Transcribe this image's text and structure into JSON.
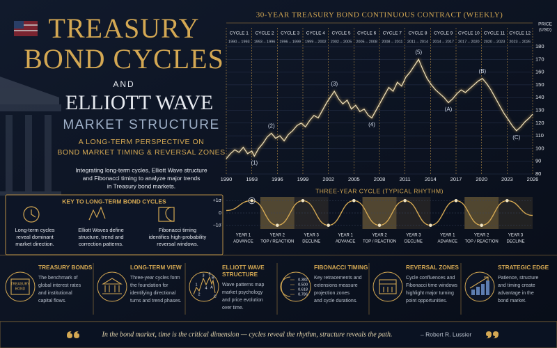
{
  "header": {
    "title_lines": [
      "TREASURY",
      "BOND CYCLES"
    ],
    "connector": "AND",
    "subtitle_lines": [
      "ELLIOTT WAVE",
      "MARKET STRUCTURE"
    ],
    "tagline_lines": [
      "A LONG-TERM PERSPECTIVE ON",
      "BOND MARKET TIMING & REVERSAL ZONES"
    ],
    "description_lines": [
      "Integrating long-term cycles, Elliott Wave structure",
      "and Fibonacci timing to analyze major trends",
      "in Treasury bond markets."
    ]
  },
  "key": {
    "title": "KEY TO LONG-TERM BOND CYCLES",
    "items": [
      [
        "Long-term cycles",
        "reveal dominant",
        "market direction."
      ],
      [
        "Elliott Waves define",
        "structure, trend and",
        "correction patterns."
      ],
      [
        "Fibonacci timing",
        "identifies high-probability",
        "reversal windows."
      ]
    ]
  },
  "chart_data": [
    {
      "type": "line",
      "title": "30-YEAR TREASURY BOND CONTINUOUS CONTRACT (WEEKLY)",
      "ylabel_lines": [
        "PRICE",
        "(USD)"
      ],
      "color": "#eadcb6",
      "x": [
        1990,
        1990.5,
        1991,
        1991.5,
        1992,
        1992.5,
        1993,
        1993.3,
        1993.8,
        1994.3,
        1994.8,
        1995.3,
        1995.8,
        1996.3,
        1996.8,
        1997.3,
        1997.8,
        1998.3,
        1998.8,
        1999.3,
        1999.8,
        2000.3,
        2000.8,
        2001.3,
        2001.8,
        2002.3,
        2002.7,
        2003.2,
        2003.7,
        2004.2,
        2004.7,
        2005.2,
        2005.7,
        2006.2,
        2006.7,
        2007.1,
        2007.6,
        2008.1,
        2008.6,
        2009.1,
        2009.6,
        2010.1,
        2010.6,
        2011.1,
        2011.6,
        2012.1,
        2012.6,
        2013.1,
        2013.6,
        2014.1,
        2014.6,
        2015.1,
        2015.6,
        2016.1,
        2016.6,
        2017.1,
        2017.6,
        2018.1,
        2018.6,
        2019.1,
        2019.6,
        2020.1,
        2020.6,
        2021.1,
        2021.6,
        2022.1,
        2022.6,
        2023.1,
        2023.6,
        2024.1,
        2024.6,
        2025.1,
        2025.6,
        2026
      ],
      "values": [
        92,
        96,
        99,
        97,
        101,
        96,
        98,
        94,
        100,
        104,
        109,
        112,
        108,
        110,
        106,
        111,
        114,
        118,
        120,
        117,
        122,
        126,
        124,
        130,
        136,
        141,
        145,
        139,
        135,
        138,
        131,
        134,
        129,
        131,
        126,
        124,
        130,
        136,
        142,
        148,
        145,
        152,
        149,
        156,
        160,
        165,
        170,
        162,
        155,
        150,
        146,
        143,
        140,
        136,
        139,
        143,
        146,
        144,
        147,
        150,
        153,
        155,
        151,
        146,
        140,
        134,
        128,
        123,
        118,
        114,
        117,
        121,
        124,
        127
      ],
      "xlim": [
        1990,
        2026
      ],
      "xticks": [
        1990,
        1993,
        1996,
        1999,
        2002,
        2005,
        2008,
        2011,
        2014,
        2017,
        2020,
        2023,
        2026
      ],
      "ylim": [
        80,
        180
      ],
      "yticks": [
        80,
        90,
        100,
        110,
        120,
        130,
        140,
        150,
        160,
        170,
        180
      ],
      "grid": true,
      "cycles": [
        {
          "name": "CYCLE 1",
          "years": "1990 – 1993"
        },
        {
          "name": "CYCLE 2",
          "years": "1993 – 1996"
        },
        {
          "name": "CYCLE 3",
          "years": "1996 – 1999"
        },
        {
          "name": "CYCLE 4",
          "years": "1999 – 2002"
        },
        {
          "name": "CYCLE 5",
          "years": "2002 – 2005"
        },
        {
          "name": "CYCLE 6",
          "years": "2005 – 2008"
        },
        {
          "name": "CYCLE 7",
          "years": "2008 – 2011"
        },
        {
          "name": "CYCLE 8",
          "years": "2011 – 2014"
        },
        {
          "name": "CYCLE 9",
          "years": "2014 – 2017"
        },
        {
          "name": "CYCLE 10",
          "years": "2017 – 2020"
        },
        {
          "name": "CYCLE 11",
          "years": "2020 – 2023"
        },
        {
          "name": "CYCLE 12",
          "years": "2023 – 2026"
        }
      ],
      "annotations": [
        {
          "text": "(1)",
          "x": 1993.3,
          "y": 94
        },
        {
          "text": "(2)",
          "x": 1995.3,
          "y": 112
        },
        {
          "text": "(3)",
          "x": 2002.7,
          "y": 145
        },
        {
          "text": "(4)",
          "x": 2007.1,
          "y": 124
        },
        {
          "text": "(5)",
          "x": 2012.6,
          "y": 170
        },
        {
          "text": "(A)",
          "x": 2016.1,
          "y": 136
        },
        {
          "text": "(B)",
          "x": 2020.1,
          "y": 155
        },
        {
          "text": "(C)",
          "x": 2024.1,
          "y": 114
        }
      ]
    },
    {
      "type": "line",
      "title": "THREE-YEAR CYCLE (TYPICAL RHYTHM)",
      "color": "#d4a853",
      "x": [
        0,
        0.75,
        1.5,
        2.25,
        3,
        3.75,
        4.5,
        5.25,
        6,
        6.75,
        7.5,
        8.25,
        9
      ],
      "values": [
        0.2,
        1,
        -1,
        1,
        -1,
        1,
        -1,
        1,
        -1,
        1,
        -1,
        1,
        -0.2
      ],
      "xlim": [
        0,
        9
      ],
      "ylim": [
        -1.3,
        1.3
      ],
      "yticks": [
        {
          "value": 1,
          "label": "+1σ"
        },
        0,
        {
          "value": -1,
          "label": "−1σ"
        }
      ],
      "phases": [
        {
          "year": "YEAR 1",
          "label": "ADVANCE"
        },
        {
          "year": "YEAR 2",
          "label": "TOP / REACTION"
        },
        {
          "year": "YEAR 3",
          "label": "DECLINE"
        },
        {
          "year": "YEAR 1",
          "label": "ADVANCE"
        },
        {
          "year": "YEAR 2",
          "label": "TOP / REACTION"
        },
        {
          "year": "YEAR 3",
          "label": "DECLINE"
        },
        {
          "year": "YEAR 1",
          "label": "ADVANCE"
        },
        {
          "year": "YEAR 2",
          "label": "TOP / REACTION"
        },
        {
          "year": "YEAR 3",
          "label": "DECLINE"
        }
      ]
    }
  ],
  "cards": [
    {
      "title": [
        "TREASURY BONDS"
      ],
      "icon_labels": [
        "TREASURY",
        "BOND"
      ],
      "lines": [
        "The benchmark of",
        "global interest rates",
        "and institutional",
        "capital flows."
      ]
    },
    {
      "title": [
        "LONG-TERM VIEW"
      ],
      "lines": [
        "Three-year cycles form",
        "the foundation for",
        "identifying directional",
        "turns and trend phases."
      ]
    },
    {
      "title": [
        "ELLIOTT WAVE",
        "STRUCTURE"
      ],
      "icon_labels": [
        "1",
        "2",
        "3",
        "4",
        "5",
        "A",
        "B",
        "C"
      ],
      "lines": [
        "Wave patterns map",
        "market psychology",
        "and price evolution",
        "over time."
      ]
    },
    {
      "title": [
        "FIBONACCI TIMING"
      ],
      "icon_labels": [
        "0.382",
        "0.500",
        "0.618",
        "0.786"
      ],
      "lines": [
        "Key retracements and",
        "extensions measure",
        "projection zones",
        "and cycle durations."
      ]
    },
    {
      "title": [
        "REVERSAL ZONES"
      ],
      "lines": [
        "Cycle confluences and",
        "Fibonacci time windows",
        "highlight major turning",
        "point opportunities."
      ]
    },
    {
      "title": [
        "STRATEGIC EDGE"
      ],
      "lines": [
        "Patience, structure",
        "and timing create",
        "advantage in the",
        "bond market."
      ]
    }
  ],
  "quote": {
    "text": "In the bond market, time is the critical dimension — cycles reveal the rhythm, structure reveals the path.",
    "author": "– Robert R. Lussier"
  }
}
